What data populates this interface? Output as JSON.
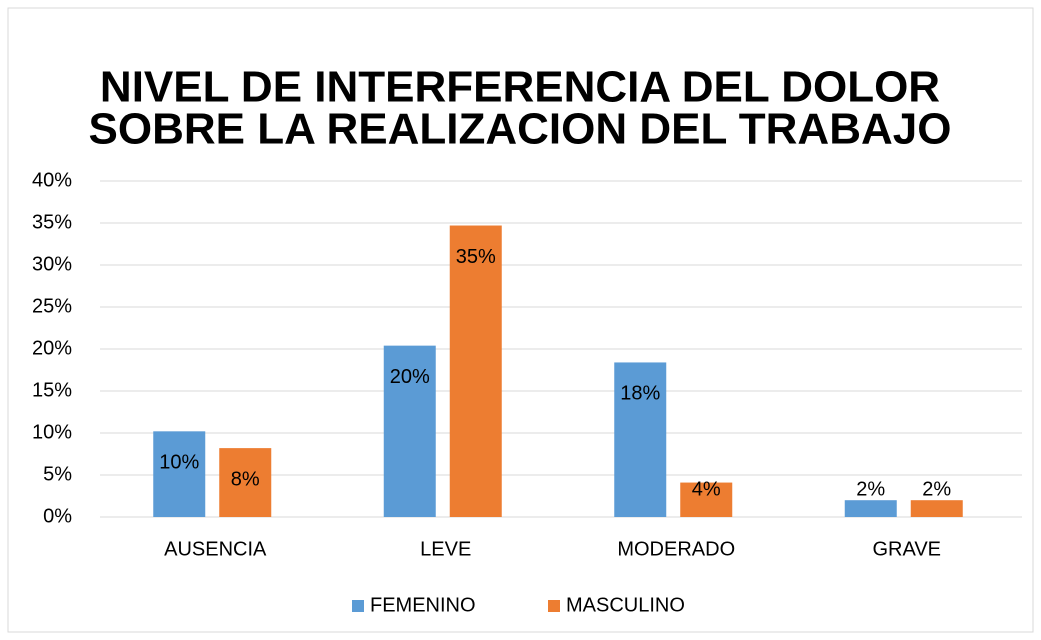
{
  "chart_data": {
    "type": "bar",
    "title_lines": [
      "NIVEL DE INTERFERENCIA DEL DOLOR",
      "SOBRE LA REALIZACION DEL TRABAJO"
    ],
    "categories": [
      "AUSENCIA",
      "LEVE",
      "MODERADO",
      "GRAVE"
    ],
    "series": [
      {
        "name": "FEMENINO",
        "color": "#5b9bd5",
        "values": [
          10.2,
          20.4,
          18.4,
          2.0
        ],
        "value_labels": [
          "10%",
          "20%",
          "18%",
          "2%"
        ]
      },
      {
        "name": "MASCULINO",
        "color": "#ed7d31",
        "values": [
          8.2,
          34.7,
          4.1,
          2.0
        ],
        "value_labels": [
          "8%",
          "35%",
          "4%",
          "2%"
        ]
      }
    ],
    "ylim": [
      0,
      40
    ],
    "yticks": [
      {
        "value": 0,
        "label": "0%"
      },
      {
        "value": 5,
        "label": "5%"
      },
      {
        "value": 10,
        "label": "10%"
      },
      {
        "value": 15,
        "label": "15%"
      },
      {
        "value": 20,
        "label": "20%"
      },
      {
        "value": 25,
        "label": "25%"
      },
      {
        "value": 30,
        "label": "30%"
      },
      {
        "value": 35,
        "label": "35%"
      },
      {
        "value": 40,
        "label": "40%"
      }
    ],
    "grid": true,
    "legend": "bottom"
  }
}
